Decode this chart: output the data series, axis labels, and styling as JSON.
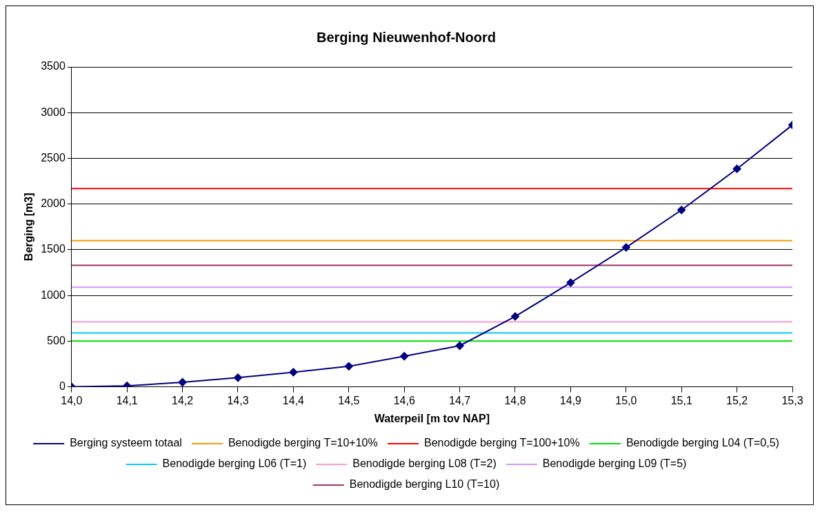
{
  "chart_data": {
    "type": "line",
    "title": "Berging Nieuwenhof-Noord",
    "xlabel": "Waterpeil [m tov NAP]",
    "ylabel": "Berging [m3]",
    "xlim": [
      14,
      15.3
    ],
    "xticks": [
      {
        "value": 14,
        "label": "14,0"
      },
      {
        "value": 14.1,
        "label": "14,1"
      },
      {
        "value": 14.2,
        "label": "14,2"
      },
      {
        "value": 14.3,
        "label": "14,3"
      },
      {
        "value": 14.4,
        "label": "14,4"
      },
      {
        "value": 14.5,
        "label": "14,5"
      },
      {
        "value": 14.6,
        "label": "14,6"
      },
      {
        "value": 14.7,
        "label": "14,7"
      },
      {
        "value": 14.8,
        "label": "14,8"
      },
      {
        "value": 14.9,
        "label": "14,9"
      },
      {
        "value": 15,
        "label": "15,0"
      },
      {
        "value": 15.1,
        "label": "15,1"
      },
      {
        "value": 15.2,
        "label": "15,2"
      },
      {
        "value": 15.3,
        "label": "15,3"
      }
    ],
    "ylim": [
      0,
      3500
    ],
    "yticks": [
      0,
      500,
      1000,
      1500,
      2000,
      2500,
      3000,
      3500
    ],
    "grid": "y",
    "legend": "bottom",
    "marker": "diamond",
    "line_style": "solid",
    "series": [
      {
        "name": "Berging systeem totaal",
        "color": "#000080",
        "x": [
          14,
          14.1,
          14.2,
          14.3,
          14.4,
          14.5,
          14.6,
          14.7,
          14.8,
          14.9,
          15,
          15.1,
          15.2,
          15.3
        ],
        "values": [
          0,
          10,
          50,
          100,
          160,
          225,
          335,
          450,
          770,
          1140,
          1525,
          1935,
          2385,
          2865
        ]
      },
      {
        "name": "Benodigde berging T=10+10%",
        "color": "#ff9900",
        "marker": "none",
        "x": [
          14,
          15.3
        ],
        "values": [
          1600,
          1600
        ]
      },
      {
        "name": "Benodigde berging T=100+10%",
        "color": "#ff0000",
        "marker": "none",
        "x": [
          14,
          15.3
        ],
        "values": [
          2170,
          2170
        ]
      },
      {
        "name": "Benodigde berging L04 (T=0,5)",
        "color": "#00dd00",
        "marker": "none",
        "x": [
          14,
          15.3
        ],
        "values": [
          500,
          500
        ]
      },
      {
        "name": "Benodigde berging L06 (T=1)",
        "color": "#00ccff",
        "marker": "none",
        "x": [
          14,
          15.3
        ],
        "values": [
          590,
          590
        ]
      },
      {
        "name": "Benodigde berging L08 (T=2)",
        "color": "#ff99cc",
        "marker": "none",
        "x": [
          14,
          15.3
        ],
        "values": [
          710,
          710
        ]
      },
      {
        "name": "Benodigde berging L09 (T=5)",
        "color": "#cc99ff",
        "marker": "none",
        "x": [
          14,
          15.3
        ],
        "values": [
          1090,
          1090
        ]
      },
      {
        "name": "Benodigde berging L10 (T=10)",
        "color": "#993366",
        "marker": "none",
        "x": [
          14,
          15.3
        ],
        "values": [
          1330,
          1330
        ]
      }
    ]
  }
}
